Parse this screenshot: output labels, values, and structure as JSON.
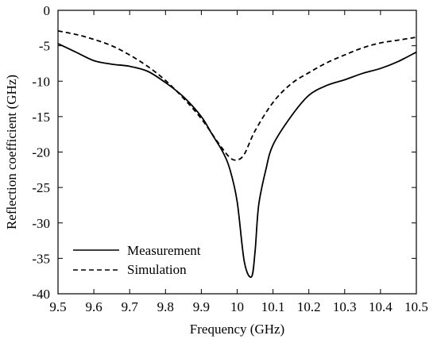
{
  "chart_data": {
    "type": "line",
    "title": "",
    "xlabel": "Frequency (GHz)",
    "ylabel": "Reflection coefficient (GHz)",
    "xlim": [
      9.5,
      10.5
    ],
    "ylim": [
      -40,
      0
    ],
    "xticks": [
      "9.5",
      "9.6",
      "9.7",
      "9.8",
      "9.9",
      "10",
      "10.1",
      "10.2",
      "10.3",
      "10.4",
      "10.5"
    ],
    "yticks": [
      "0",
      "-5",
      "-10",
      "-15",
      "-20",
      "-25",
      "-30",
      "-35",
      "-40"
    ],
    "grid": false,
    "legend_position": "bottom-left",
    "series": [
      {
        "name": "Measurement",
        "style": "solid",
        "color": "#000000",
        "x": [
          9.5,
          9.55,
          9.6,
          9.65,
          9.7,
          9.75,
          9.8,
          9.85,
          9.9,
          9.93,
          9.96,
          9.98,
          10.0,
          10.02,
          10.04,
          10.05,
          10.06,
          10.08,
          10.1,
          10.15,
          10.2,
          10.25,
          10.3,
          10.35,
          10.4,
          10.45,
          10.5
        ],
        "y": [
          -4.7,
          -5.9,
          -7.1,
          -7.6,
          -7.9,
          -8.6,
          -10.2,
          -12.2,
          -15.0,
          -17.5,
          -20.0,
          -22.5,
          -27.0,
          -35.5,
          -37.6,
          -34.0,
          -27.5,
          -22.5,
          -19.0,
          -15.0,
          -12.0,
          -10.6,
          -9.8,
          -8.9,
          -8.2,
          -7.2,
          -5.9
        ]
      },
      {
        "name": "Simulation",
        "style": "dashed",
        "color": "#000000",
        "x": [
          9.5,
          9.55,
          9.6,
          9.65,
          9.7,
          9.75,
          9.8,
          9.85,
          9.9,
          9.95,
          9.98,
          10.0,
          10.02,
          10.05,
          10.1,
          10.15,
          10.2,
          10.25,
          10.3,
          10.35,
          10.4,
          10.45,
          10.5
        ],
        "y": [
          -2.9,
          -3.4,
          -4.1,
          -5.0,
          -6.3,
          -7.9,
          -9.9,
          -12.4,
          -15.3,
          -18.9,
          -20.8,
          -21.1,
          -20.3,
          -17.0,
          -13.0,
          -10.4,
          -8.8,
          -7.4,
          -6.3,
          -5.3,
          -4.6,
          -4.2,
          -3.8
        ]
      }
    ]
  }
}
